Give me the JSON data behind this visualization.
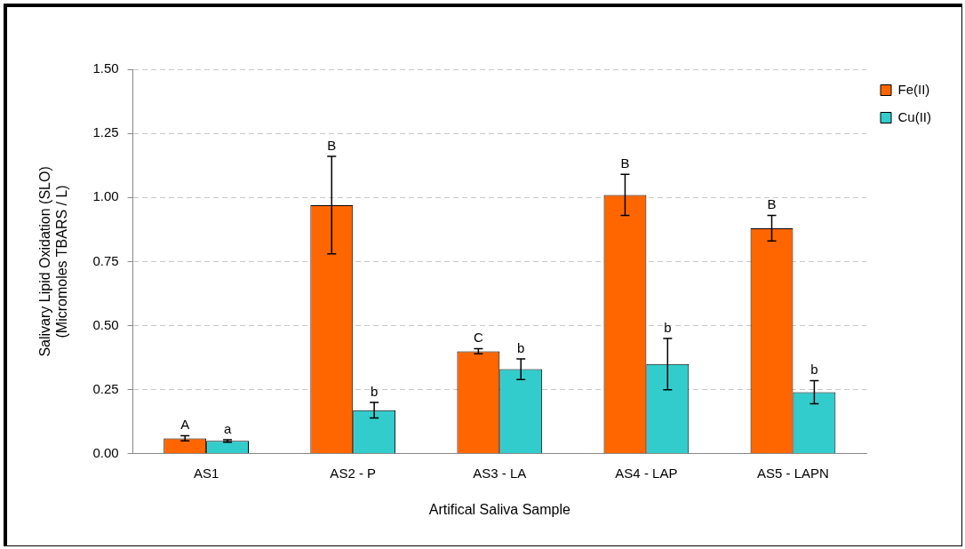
{
  "chart_data": {
    "type": "bar",
    "xlabel": "Artifical Saliva Sample",
    "ylabel": "Salivary Lipid Oxidation (SLO)\n(Micromoles TBARS / L)",
    "categories": [
      "AS1",
      "AS2 - P",
      "AS3 - LA",
      "AS4 - LAP",
      "AS5 - LAPN"
    ],
    "series": [
      {
        "name": "Fe(II)",
        "color": "#ff6600",
        "values": [
          0.06,
          0.97,
          0.4,
          1.01,
          0.88
        ],
        "errors": [
          0.01,
          0.19,
          0.01,
          0.08,
          0.05
        ]
      },
      {
        "name": "Cu(II)",
        "color": "#33cccc",
        "values": [
          0.05,
          0.17,
          0.33,
          0.35,
          0.24
        ],
        "errors": [
          0.005,
          0.03,
          0.04,
          0.1,
          0.045
        ]
      }
    ],
    "ylim": [
      0,
      1.5
    ],
    "yticks": [
      {
        "value": 0,
        "label": "0.00"
      },
      {
        "value": 0.25,
        "label": "0.25"
      },
      {
        "value": 0.5,
        "label": "0.50"
      },
      {
        "value": 0.75,
        "label": "0.75"
      },
      {
        "value": 1,
        "label": "1.00"
      },
      {
        "value": 1.25,
        "label": "1.25"
      },
      {
        "value": 1.5,
        "label": "1.50"
      }
    ],
    "grid": "y",
    "legend": "right",
    "annotations": [
      "A",
      "a",
      "B",
      "b",
      "C",
      "b",
      "B",
      "b",
      "B",
      "b"
    ]
  }
}
